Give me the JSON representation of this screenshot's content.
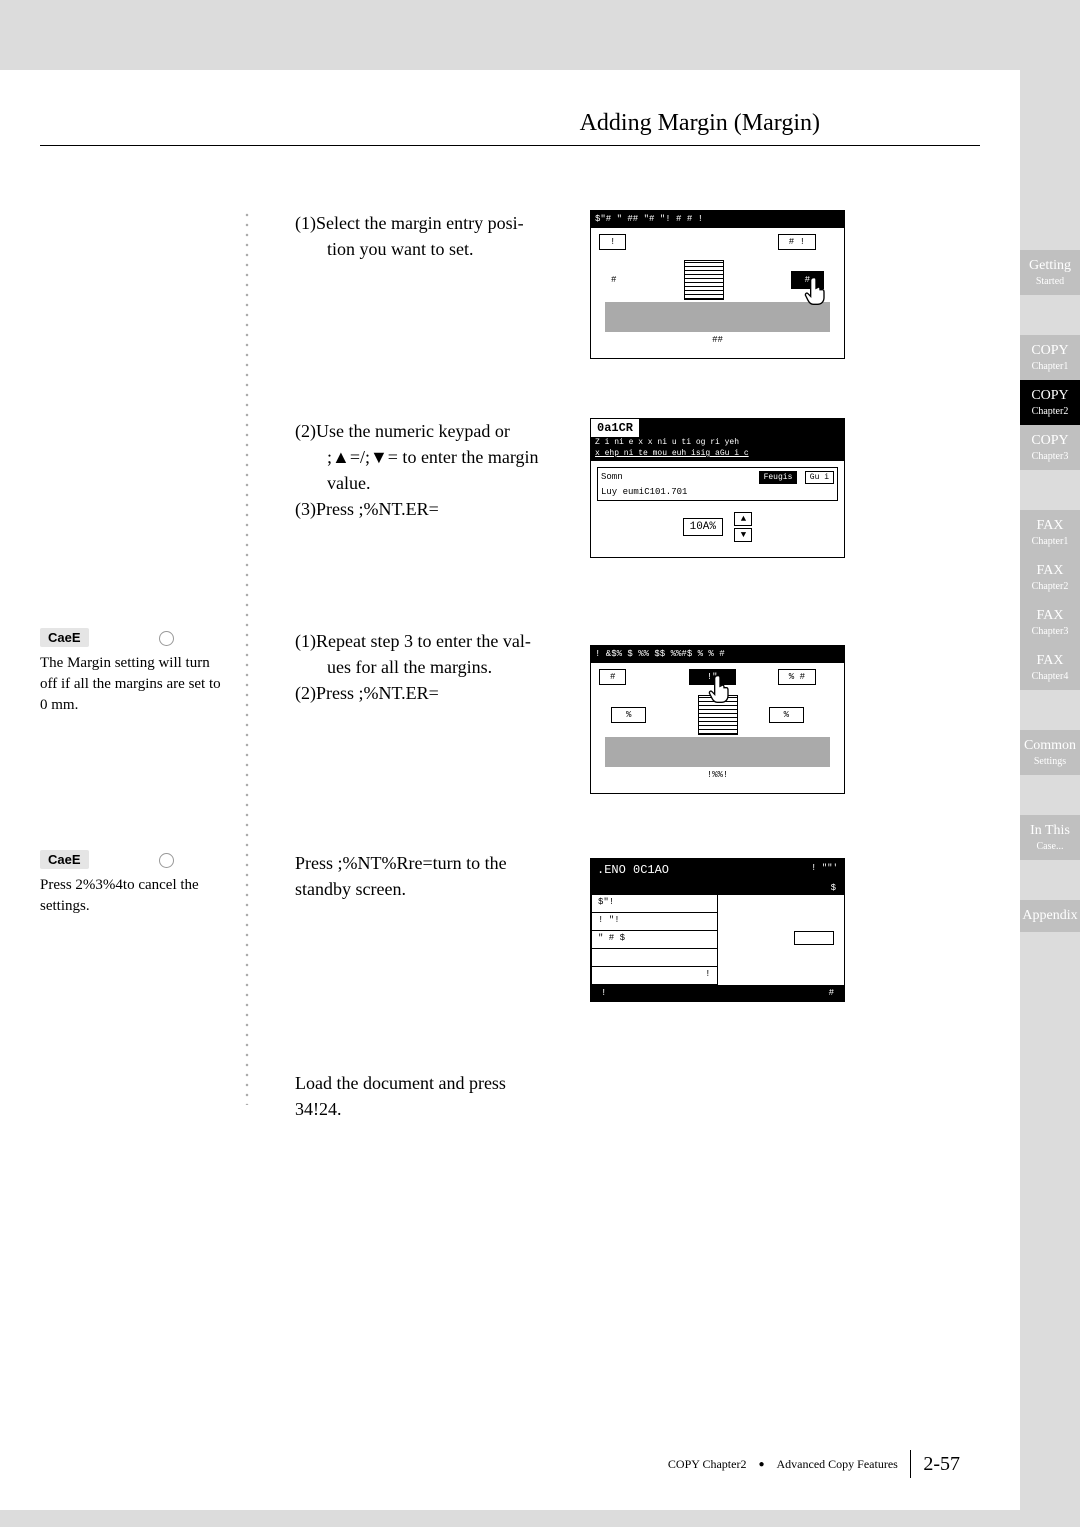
{
  "page_title": "Adding Margin (Margin)",
  "steps": {
    "s1": {
      "lines": [
        "(1)Select the margin entry posi-",
        "tion you want to set."
      ]
    },
    "s2": {
      "lines": [
        "(2)Use the numeric keypad or",
        ";▲=/;▼= to enter the margin",
        "value.",
        "(3)Press ;%NT.ER="
      ]
    },
    "s3": {
      "lines": [
        "(1)Repeat step 3 to enter the val-",
        "ues for all the margins.",
        "(2)Press ;%NT.ER="
      ]
    },
    "s4": {
      "lines": [
        "Press ;%NT%Rre=turn to the",
        "standby screen."
      ]
    },
    "s5": {
      "lines": [
        "Load the document and press",
        "34!24."
      ]
    }
  },
  "notes": {
    "n1": {
      "label": "CaeE",
      "text": "The Margin setting will turn off if all the margins are set to 0 mm."
    },
    "n2": {
      "label": "CaeE",
      "text": "Press 2%3%4to cancel the settings."
    }
  },
  "lcd1": {
    "header": "$\"# \" ##    \"#   \"!    #    # !",
    "top_left": "!",
    "top_right": "# !",
    "left_label": "#",
    "right_label": "#",
    "bottom": "##"
  },
  "lcd2": {
    "title": "0a1CR",
    "sub1": "Z i  ni e  x   x   ni u ti  og ri  yeh",
    "sub2": "x ehp     ni te  mou euh  isig   aGu  i  c",
    "row1_left": "Somn",
    "row1_right1": "Feugis",
    "row1_right2": "Gu  i",
    "row2": "Luy     eumiC101.701",
    "value": "10A%"
  },
  "lcd3": {
    "header": "! &$% $ %%  $$ %%#$    %    % #",
    "top_left": "#",
    "top_mid": "!\"",
    "top_right": "% #",
    "left_label": "%",
    "right_label": "%",
    "bottom": "!%%!"
  },
  "lcd4": {
    "title": ".ENO 0C1AO",
    "top_right": "!   \"\"'",
    "sub_right": "$",
    "rows": [
      "$\"!",
      "! \"!",
      "\" #   $",
      "",
      "!"
    ],
    "footer_left": "!",
    "footer_right": "#"
  },
  "tabs": [
    {
      "main": "Getting",
      "sub": "Started",
      "gap_before": 0
    },
    {
      "main": "COPY",
      "sub": "Chapter1",
      "gap_before": 40
    },
    {
      "main": "COPY",
      "sub": "Chapter2",
      "gap_before": 0,
      "active": true
    },
    {
      "main": "COPY",
      "sub": "Chapter3",
      "gap_before": 0
    },
    {
      "main": "FAX",
      "sub": "Chapter1",
      "gap_before": 40
    },
    {
      "main": "FAX",
      "sub": "Chapter2",
      "gap_before": 0
    },
    {
      "main": "FAX",
      "sub": "Chapter3",
      "gap_before": 0
    },
    {
      "main": "FAX",
      "sub": "Chapter4",
      "gap_before": 0
    },
    {
      "main": "Common",
      "sub": "Settings",
      "gap_before": 40
    },
    {
      "main": "In This",
      "sub": "Case...",
      "gap_before": 40
    },
    {
      "main": "Appendix",
      "sub": "",
      "gap_before": 40
    }
  ],
  "footer": {
    "chapter": "COPY Chapter2",
    "section": "Advanced Copy Features",
    "page": "2-57"
  },
  "colors": {
    "page_bg": "#dcdcdc",
    "tab_inactive": "#c0c0c0",
    "tab_active": "#000000"
  }
}
